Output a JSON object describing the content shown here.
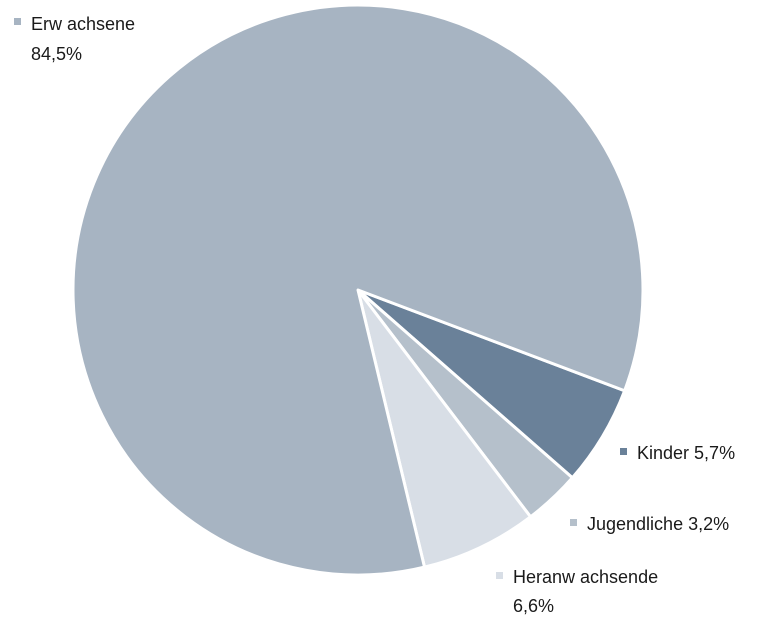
{
  "chart_data": {
    "type": "pie",
    "title": "",
    "slices": [
      {
        "label": "Erw achsene",
        "value_text": "84,5%",
        "value": 84.5,
        "color": "#a7b4c2"
      },
      {
        "label": "Kinder",
        "value_text": "5,7%",
        "value": 5.7,
        "color": "#6a8199"
      },
      {
        "label": "Jugendliche",
        "value_text": "3,2%",
        "value": 3.2,
        "color": "#b5c0cb"
      },
      {
        "label": "Heranw achsende",
        "value_text": "6,6%",
        "value": 6.6,
        "color": "#d8dee6"
      }
    ],
    "legend": "labels beside slices"
  }
}
